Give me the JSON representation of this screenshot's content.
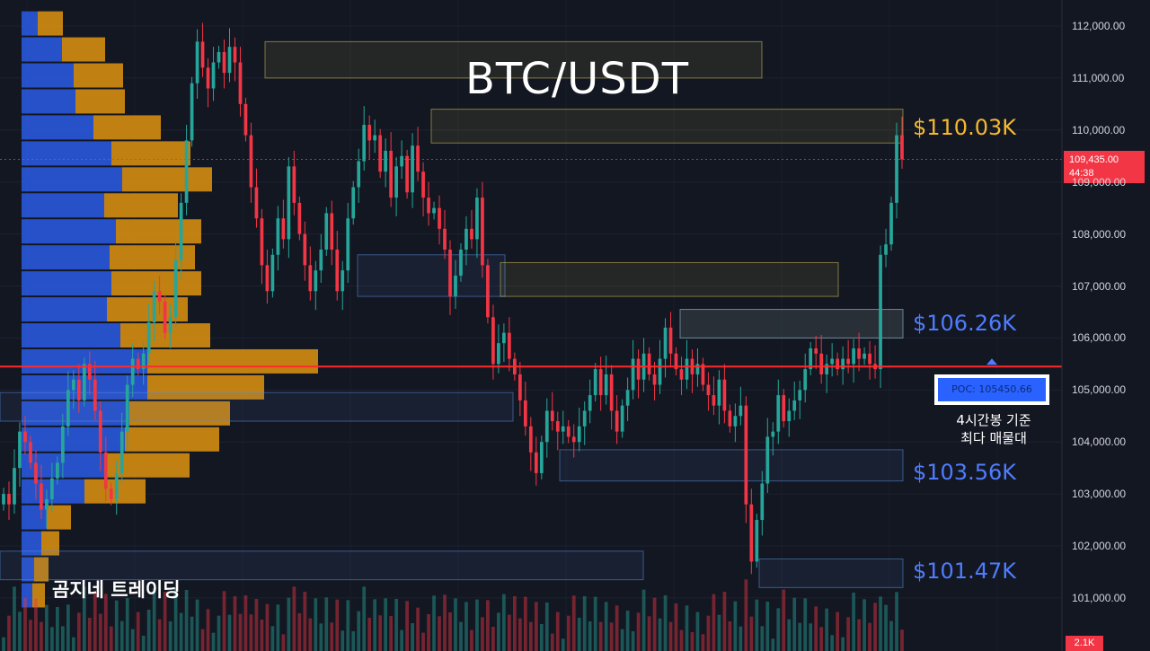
{
  "title": "BTC/USDT",
  "watermark": "곰지네 트레이딩",
  "annotations": {
    "level_high": "$110.03K",
    "level_mid": "$106.26K",
    "level_low1": "$103.56K",
    "level_low2": "$101.47K",
    "poc_label": "POC: 105450.66",
    "poc_note_line1": "4시간봉 기준",
    "poc_note_line2": "최다 매물대"
  },
  "price_tag": {
    "price": "109,435.00",
    "countdown": "44:38"
  },
  "volume_tag": "2.1K",
  "colors": {
    "background": "#131722",
    "up": "#26a69a",
    "down": "#f23645",
    "poc_line": "#ff2a2a",
    "gold": "#f5b82e",
    "blue": "#4f7cff",
    "vp_up": "#2b5ce6",
    "vp_down": "#e0930f"
  },
  "chart_data": {
    "type": "candlestick",
    "title": "BTC/USDT",
    "y_axis": {
      "ticks": [
        "112,000.00",
        "111,000.00",
        "110,000.00",
        "109,000.00",
        "108,000.00",
        "107,000.00",
        "106,000.00",
        "105,000.00",
        "104,000.00",
        "103,000.00",
        "102,000.00",
        "101,000.00"
      ],
      "range": [
        100000,
        112300
      ]
    },
    "current_price": 109435,
    "poc": 105450.66,
    "levels": [
      110030,
      106260,
      103560,
      101470
    ],
    "zones": [
      {
        "from": 111000,
        "to": 111700,
        "color": "yellow"
      },
      {
        "from": 109750,
        "to": 110400,
        "color": "yellow"
      },
      {
        "from": 107600,
        "to": 106800,
        "color": "blue"
      },
      {
        "from": 107450,
        "to": 106800,
        "color": "yellow"
      },
      {
        "from": 106550,
        "to": 106000,
        "color": "yellow"
      },
      {
        "from": 106550,
        "to": 106000,
        "color": "blue"
      },
      {
        "from": 104950,
        "to": 104400,
        "color": "blue"
      },
      {
        "from": 103850,
        "to": 103250,
        "color": "blue"
      },
      {
        "from": 101900,
        "to": 101350,
        "color": "blue"
      },
      {
        "from": 101750,
        "to": 101200,
        "color": "blue"
      }
    ],
    "closes": [
      103000,
      102800,
      103500,
      104200,
      104000,
      103600,
      103200,
      102700,
      102900,
      103300,
      103600,
      104300,
      105000,
      105200,
      104800,
      105500,
      105200,
      104600,
      103800,
      103100,
      102900,
      103400,
      104200,
      105100,
      105600,
      105400,
      105700,
      106300,
      106900,
      106700,
      106100,
      106400,
      107500,
      108600,
      109800,
      110900,
      111700,
      111200,
      110800,
      111300,
      111500,
      111100,
      111600,
      111300,
      110500,
      109900,
      108900,
      108300,
      107400,
      106900,
      107600,
      108300,
      107900,
      109300,
      108600,
      108000,
      107400,
      106900,
      107300,
      107700,
      108400,
      107700,
      106900,
      107300,
      108300,
      108900,
      109400,
      110100,
      109800,
      109900,
      109200,
      109600,
      108700,
      109300,
      109500,
      108800,
      109700,
      109200,
      108700,
      108400,
      108500,
      108100,
      107700,
      106800,
      107200,
      107700,
      108100,
      107900,
      108700,
      107400,
      106400,
      105500,
      105900,
      106100,
      105600,
      105300,
      104800,
      104300,
      103800,
      103400,
      104000,
      104600,
      104400,
      104200,
      104300,
      104100,
      104000,
      104300,
      104600,
      104900,
      105400,
      104900,
      105300,
      104600,
      104200,
      104700,
      105000,
      105600,
      105200,
      105700,
      105300,
      105100,
      105600,
      106200,
      105700,
      105400,
      105200,
      105600,
      105300,
      105500,
      105100,
      104900,
      104700,
      105200,
      104600,
      104300,
      104500,
      104700,
      102800,
      101700,
      102500,
      103200,
      104100,
      104200,
      104900,
      104400,
      104600,
      104800,
      105000,
      105400,
      105800,
      105700,
      105300,
      105500,
      105600,
      105400,
      105600,
      105500,
      105800,
      105600,
      105700,
      105500,
      105400,
      107600,
      107800,
      108600,
      109900,
      109435
    ],
    "volume_profile": [
      {
        "price_from": 111800,
        "price_to": 112300,
        "up": 18,
        "down": 28
      },
      {
        "price_from": 111300,
        "price_to": 111800,
        "up": 45,
        "down": 48
      },
      {
        "price_from": 110800,
        "price_to": 111300,
        "up": 58,
        "down": 55
      },
      {
        "price_from": 110300,
        "price_to": 110800,
        "up": 60,
        "down": 55
      },
      {
        "price_from": 109800,
        "price_to": 110300,
        "up": 80,
        "down": 75
      },
      {
        "price_from": 109300,
        "price_to": 109800,
        "up": 100,
        "down": 88
      },
      {
        "price_from": 108800,
        "price_to": 109300,
        "up": 112,
        "down": 100
      },
      {
        "price_from": 108300,
        "price_to": 108800,
        "up": 92,
        "down": 82
      },
      {
        "price_from": 107800,
        "price_to": 108300,
        "up": 105,
        "down": 95
      },
      {
        "price_from": 107300,
        "price_to": 107800,
        "up": 98,
        "down": 95
      },
      {
        "price_from": 106800,
        "price_to": 107300,
        "up": 100,
        "down": 100
      },
      {
        "price_from": 106300,
        "price_to": 106800,
        "up": 95,
        "down": 90
      },
      {
        "price_from": 105800,
        "price_to": 106300,
        "up": 110,
        "down": 100
      },
      {
        "price_from": 105300,
        "price_to": 105800,
        "up": 140,
        "down": 190
      },
      {
        "price_from": 104800,
        "price_to": 105300,
        "up": 140,
        "down": 130
      },
      {
        "price_from": 104300,
        "price_to": 104800,
        "up": 120,
        "down": 112
      },
      {
        "price_from": 103800,
        "price_to": 104300,
        "up": 115,
        "down": 105
      },
      {
        "price_from": 103300,
        "price_to": 103800,
        "up": 92,
        "down": 95
      },
      {
        "price_from": 102800,
        "price_to": 103300,
        "up": 70,
        "down": 68
      },
      {
        "price_from": 102300,
        "price_to": 102800,
        "up": 28,
        "down": 27
      },
      {
        "price_from": 101800,
        "price_to": 102300,
        "up": 22,
        "down": 20
      },
      {
        "price_from": 101300,
        "price_to": 101800,
        "up": 14,
        "down": 16
      },
      {
        "price_from": 100800,
        "price_to": 101300,
        "up": 12,
        "down": 14
      }
    ]
  }
}
